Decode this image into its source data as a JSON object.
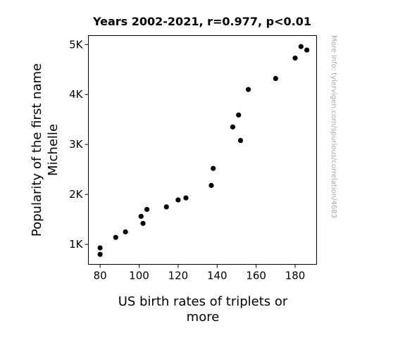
{
  "chart_data": {
    "type": "scatter",
    "title": "Years 2002-2021, r=0.977, p<0.01",
    "xlabel": [
      "US birth rates of triplets or",
      "more"
    ],
    "ylabel": [
      "Popularity of the first name",
      "Michelle"
    ],
    "xlim": [
      74,
      191
    ],
    "ylim": [
      600,
      5180
    ],
    "x_ticks": [
      80,
      100,
      120,
      140,
      160,
      180
    ],
    "y_ticks": [
      1000,
      2000,
      3000,
      4000,
      5000
    ],
    "x_tick_labels": [
      "80",
      "100",
      "120",
      "140",
      "160",
      "180"
    ],
    "y_tick_labels": [
      "1K",
      "2K",
      "3K",
      "4K",
      "5K"
    ],
    "grid": false,
    "marker_color": "#000000",
    "points": [
      {
        "x": 80,
        "y": 930
      },
      {
        "x": 80,
        "y": 800
      },
      {
        "x": 88,
        "y": 1140
      },
      {
        "x": 93,
        "y": 1250
      },
      {
        "x": 101,
        "y": 1560
      },
      {
        "x": 102,
        "y": 1420
      },
      {
        "x": 104,
        "y": 1700
      },
      {
        "x": 114,
        "y": 1750
      },
      {
        "x": 120,
        "y": 1890
      },
      {
        "x": 124,
        "y": 1930
      },
      {
        "x": 137,
        "y": 2180
      },
      {
        "x": 138,
        "y": 2520
      },
      {
        "x": 148,
        "y": 3350
      },
      {
        "x": 151,
        "y": 3590
      },
      {
        "x": 152,
        "y": 3080
      },
      {
        "x": 156,
        "y": 4100
      },
      {
        "x": 170,
        "y": 4320
      },
      {
        "x": 180,
        "y": 4730
      },
      {
        "x": 183,
        "y": 4960
      },
      {
        "x": 186,
        "y": 4890
      }
    ]
  },
  "watermark": "More info: tylervigen.com/spurious/correlation/4683"
}
